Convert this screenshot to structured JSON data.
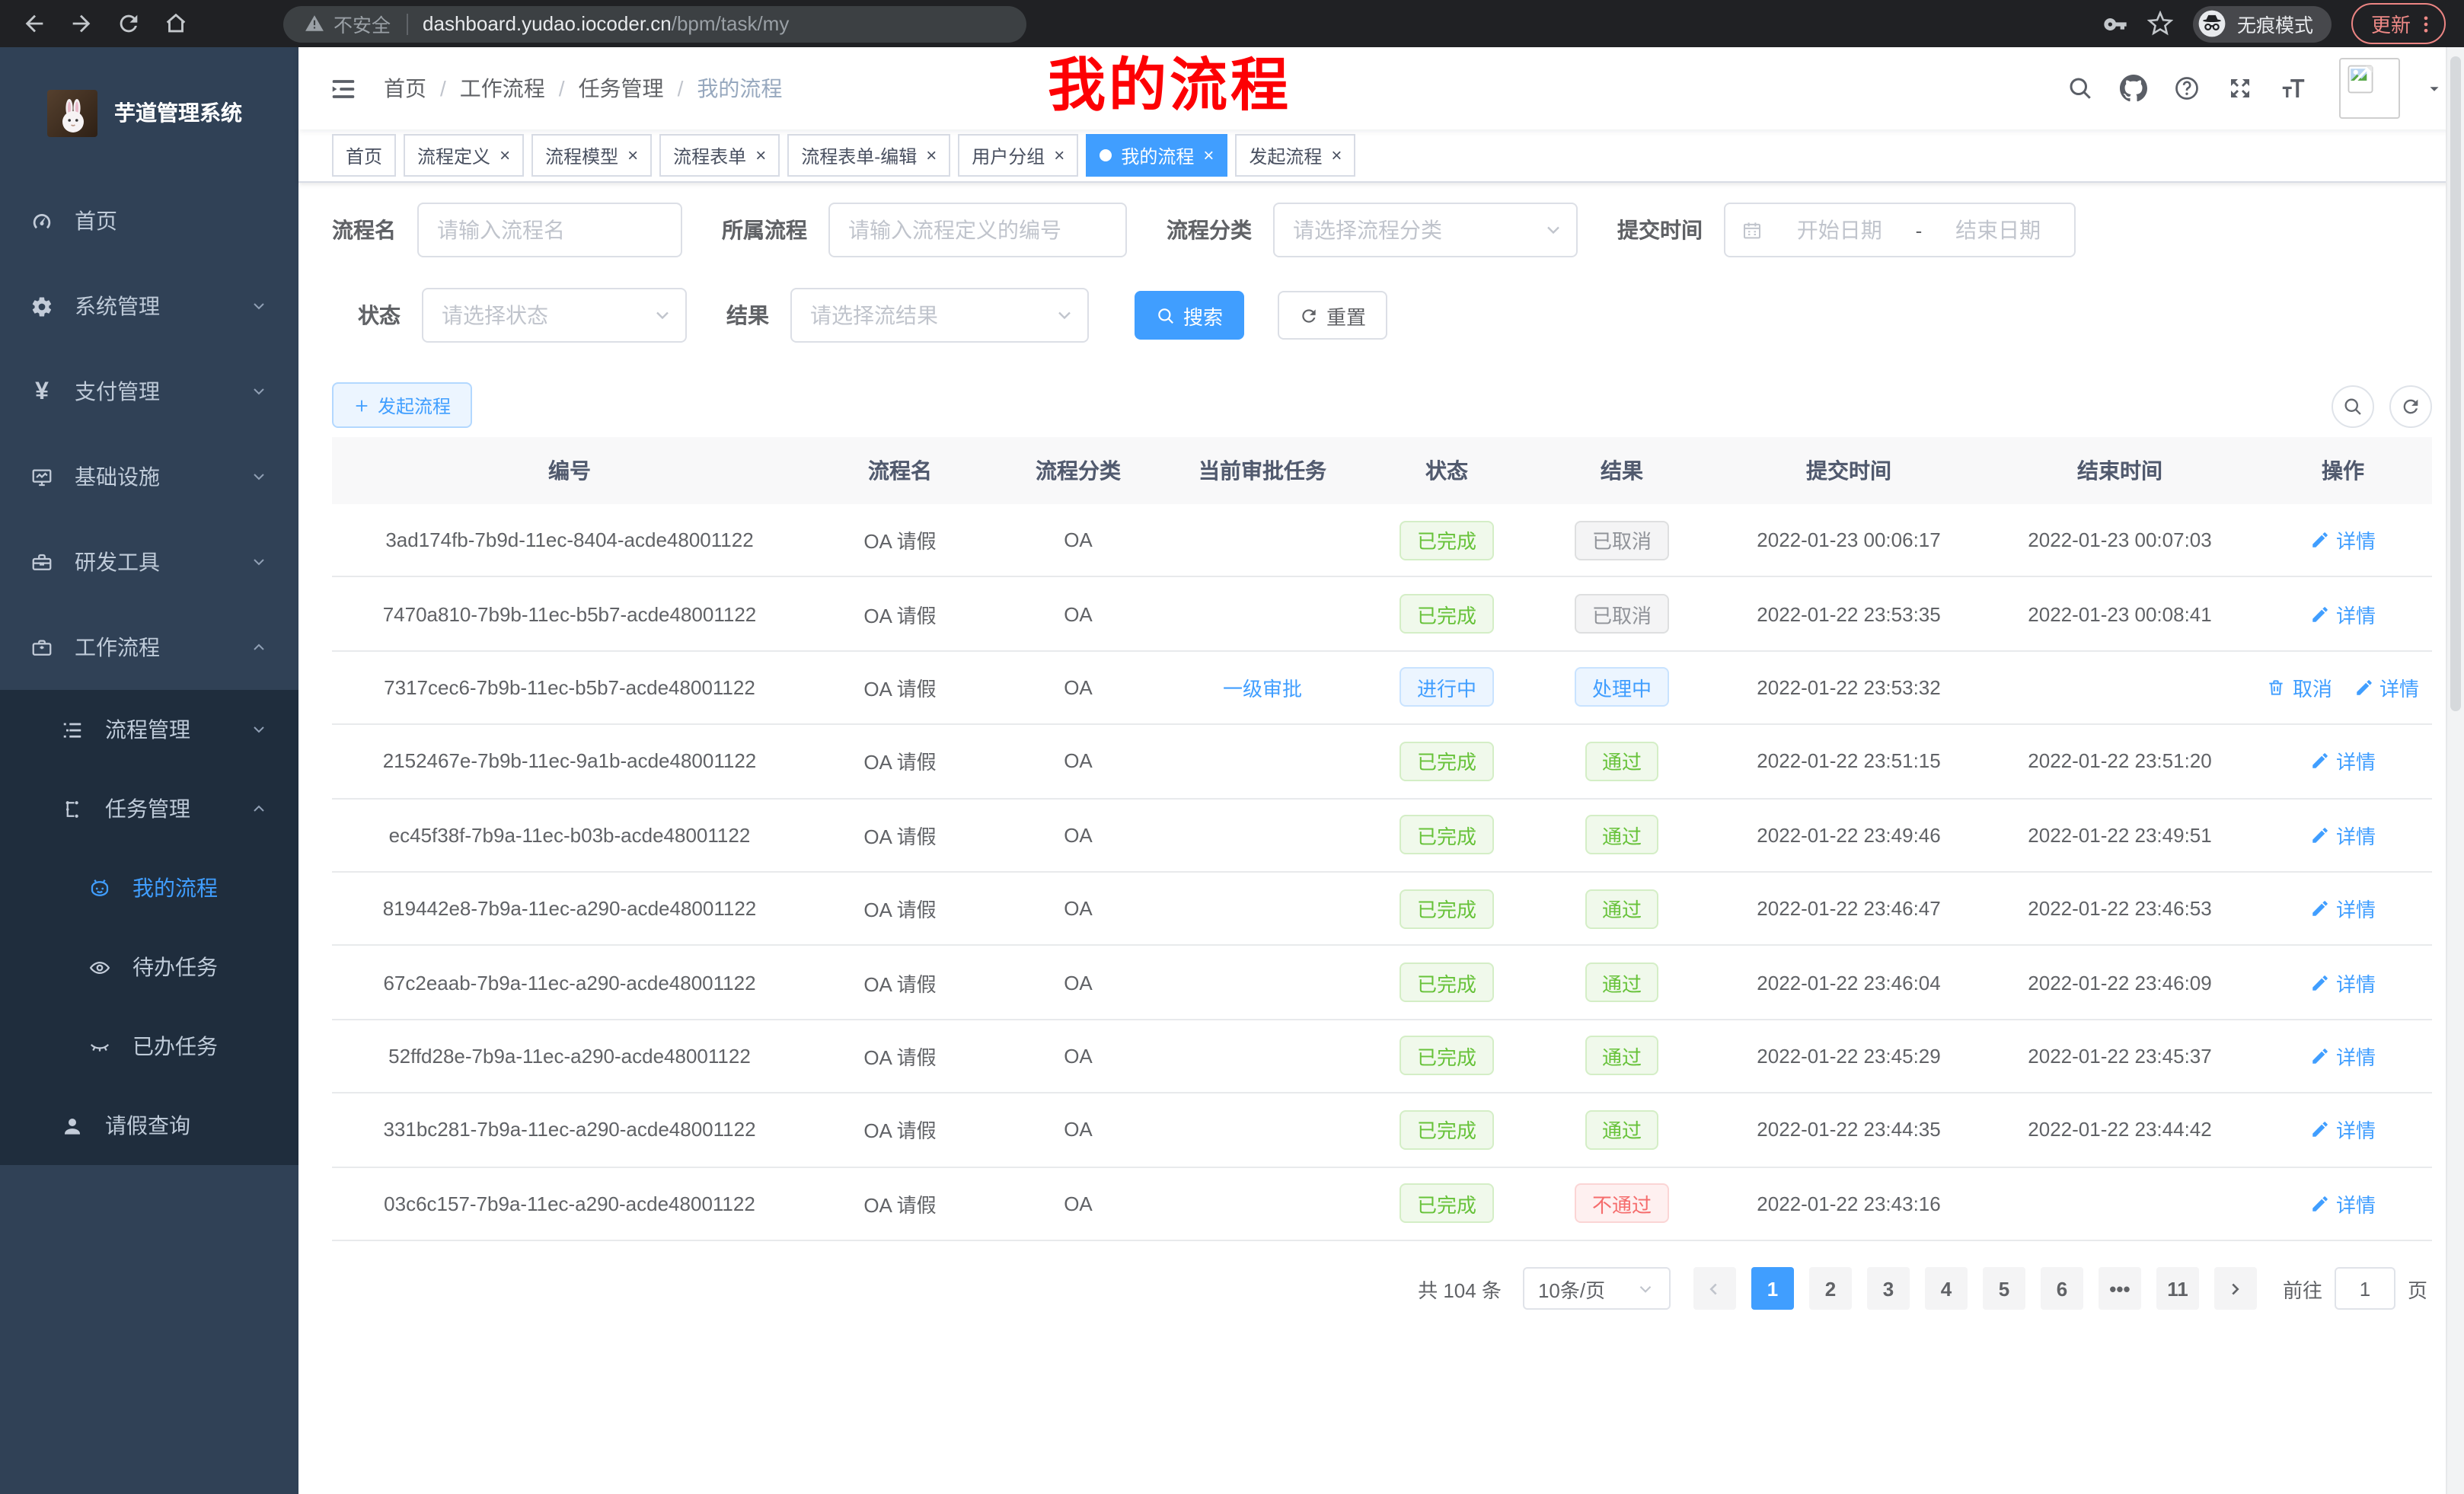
{
  "browser": {
    "security_label": "不安全",
    "url_host": "dashboard.yudao.iocoder.cn",
    "url_path": "/bpm/task/my",
    "incognito_label": "无痕模式",
    "update_label": "更新"
  },
  "sidebar": {
    "app_title": "芋道管理系统",
    "items": [
      {
        "key": "home",
        "label": "首页",
        "icon": "dashboard",
        "level": 0
      },
      {
        "key": "system",
        "label": "系统管理",
        "icon": "gear",
        "level": 0,
        "chevron": "down"
      },
      {
        "key": "payment",
        "label": "支付管理",
        "icon": "yen",
        "level": 0,
        "chevron": "down"
      },
      {
        "key": "infrastructure",
        "label": "基础设施",
        "icon": "monitor",
        "level": 0,
        "chevron": "down"
      },
      {
        "key": "devtools",
        "label": "研发工具",
        "icon": "toolbox",
        "level": 0,
        "chevron": "down"
      },
      {
        "key": "workflow",
        "label": "工作流程",
        "icon": "briefcase",
        "level": 0,
        "chevron": "up"
      },
      {
        "key": "process-mgmt",
        "label": "流程管理",
        "icon": "tree",
        "level": 1,
        "chevron": "down"
      },
      {
        "key": "task-mgmt",
        "label": "任务管理",
        "icon": "flow",
        "level": 1,
        "chevron": "up"
      },
      {
        "key": "my-process",
        "label": "我的流程",
        "icon": "robot",
        "level": 2,
        "active": true
      },
      {
        "key": "todo-tasks",
        "label": "待办任务",
        "icon": "eye",
        "level": 2
      },
      {
        "key": "done-tasks",
        "label": "已办任务",
        "icon": "eye-closed",
        "level": 2
      },
      {
        "key": "leave-query",
        "label": "请假查询",
        "icon": "user",
        "level": 1
      }
    ]
  },
  "header": {
    "breadcrumb": [
      "首页",
      "工作流程",
      "任务管理",
      "我的流程"
    ],
    "annotation": "我的流程"
  },
  "tabs": [
    {
      "key": "home",
      "label": "首页",
      "closable": false,
      "active": false
    },
    {
      "key": "process-definition",
      "label": "流程定义",
      "closable": true,
      "active": false
    },
    {
      "key": "process-model",
      "label": "流程模型",
      "closable": true,
      "active": false
    },
    {
      "key": "process-form",
      "label": "流程表单",
      "closable": true,
      "active": false
    },
    {
      "key": "process-form-edit",
      "label": "流程表单-编辑",
      "closable": true,
      "active": false
    },
    {
      "key": "user-group",
      "label": "用户分组",
      "closable": true,
      "active": false
    },
    {
      "key": "my-process",
      "label": "我的流程",
      "closable": true,
      "active": true
    },
    {
      "key": "start-process",
      "label": "发起流程",
      "closable": true,
      "active": false
    }
  ],
  "filters": {
    "process_name": {
      "label": "流程名",
      "placeholder": "请输入流程名"
    },
    "parent_process": {
      "label": "所属流程",
      "placeholder": "请输入流程定义的编号"
    },
    "category": {
      "label": "流程分类",
      "placeholder": "请选择流程分类"
    },
    "submit_time": {
      "label": "提交时间",
      "start_placeholder": "开始日期",
      "separator": "-",
      "end_placeholder": "结束日期"
    },
    "status": {
      "label": "状态",
      "placeholder": "请选择状态"
    },
    "result": {
      "label": "结果",
      "placeholder": "请选择流结果"
    },
    "search_label": "搜索",
    "reset_label": "重置"
  },
  "toolbar": {
    "create_label": "发起流程"
  },
  "table": {
    "columns": [
      "编号",
      "流程名",
      "流程分类",
      "当前审批任务",
      "状态",
      "结果",
      "提交时间",
      "结束时间",
      "操作"
    ],
    "column_keys": [
      "id",
      "name",
      "category",
      "task",
      "status",
      "result",
      "submit-time",
      "end-time",
      "actions"
    ],
    "rows": [
      {
        "id": "3ad174fb-7b9d-11ec-8404-acde48001122",
        "name": "OA 请假",
        "category": "OA",
        "task": "",
        "status": {
          "label": "已完成",
          "type": "success"
        },
        "result": {
          "label": "已取消",
          "type": "info"
        },
        "submit_time": "2022-01-23 00:06:17",
        "end_time": "2022-01-23 00:07:03",
        "actions": [
          {
            "label": "详情",
            "icon": "edit-icon"
          }
        ]
      },
      {
        "id": "7470a810-7b9b-11ec-b5b7-acde48001122",
        "name": "OA 请假",
        "category": "OA",
        "task": "",
        "status": {
          "label": "已完成",
          "type": "success"
        },
        "result": {
          "label": "已取消",
          "type": "info"
        },
        "submit_time": "2022-01-22 23:53:35",
        "end_time": "2022-01-23 00:08:41",
        "actions": [
          {
            "label": "详情",
            "icon": "edit-icon"
          }
        ]
      },
      {
        "id": "7317cec6-7b9b-11ec-b5b7-acde48001122",
        "name": "OA 请假",
        "category": "OA",
        "task": "一级审批",
        "status": {
          "label": "进行中",
          "type": "primary"
        },
        "result": {
          "label": "处理中",
          "type": "primary"
        },
        "submit_time": "2022-01-22 23:53:32",
        "end_time": "",
        "actions": [
          {
            "label": "取消",
            "icon": "delete-icon"
          },
          {
            "label": "详情",
            "icon": "edit-icon"
          }
        ]
      },
      {
        "id": "2152467e-7b9b-11ec-9a1b-acde48001122",
        "name": "OA 请假",
        "category": "OA",
        "task": "",
        "status": {
          "label": "已完成",
          "type": "success"
        },
        "result": {
          "label": "通过",
          "type": "success"
        },
        "submit_time": "2022-01-22 23:51:15",
        "end_time": "2022-01-22 23:51:20",
        "actions": [
          {
            "label": "详情",
            "icon": "edit-icon"
          }
        ]
      },
      {
        "id": "ec45f38f-7b9a-11ec-b03b-acde48001122",
        "name": "OA 请假",
        "category": "OA",
        "task": "",
        "status": {
          "label": "已完成",
          "type": "success"
        },
        "result": {
          "label": "通过",
          "type": "success"
        },
        "submit_time": "2022-01-22 23:49:46",
        "end_time": "2022-01-22 23:49:51",
        "actions": [
          {
            "label": "详情",
            "icon": "edit-icon"
          }
        ]
      },
      {
        "id": "819442e8-7b9a-11ec-a290-acde48001122",
        "name": "OA 请假",
        "category": "OA",
        "task": "",
        "status": {
          "label": "已完成",
          "type": "success"
        },
        "result": {
          "label": "通过",
          "type": "success"
        },
        "submit_time": "2022-01-22 23:46:47",
        "end_time": "2022-01-22 23:46:53",
        "actions": [
          {
            "label": "详情",
            "icon": "edit-icon"
          }
        ]
      },
      {
        "id": "67c2eaab-7b9a-11ec-a290-acde48001122",
        "name": "OA 请假",
        "category": "OA",
        "task": "",
        "status": {
          "label": "已完成",
          "type": "success"
        },
        "result": {
          "label": "通过",
          "type": "success"
        },
        "submit_time": "2022-01-22 23:46:04",
        "end_time": "2022-01-22 23:46:09",
        "actions": [
          {
            "label": "详情",
            "icon": "edit-icon"
          }
        ]
      },
      {
        "id": "52ffd28e-7b9a-11ec-a290-acde48001122",
        "name": "OA 请假",
        "category": "OA",
        "task": "",
        "status": {
          "label": "已完成",
          "type": "success"
        },
        "result": {
          "label": "通过",
          "type": "success"
        },
        "submit_time": "2022-01-22 23:45:29",
        "end_time": "2022-01-22 23:45:37",
        "actions": [
          {
            "label": "详情",
            "icon": "edit-icon"
          }
        ]
      },
      {
        "id": "331bc281-7b9a-11ec-a290-acde48001122",
        "name": "OA 请假",
        "category": "OA",
        "task": "",
        "status": {
          "label": "已完成",
          "type": "success"
        },
        "result": {
          "label": "通过",
          "type": "success"
        },
        "submit_time": "2022-01-22 23:44:35",
        "end_time": "2022-01-22 23:44:42",
        "actions": [
          {
            "label": "详情",
            "icon": "edit-icon"
          }
        ]
      },
      {
        "id": "03c6c157-7b9a-11ec-a290-acde48001122",
        "name": "OA 请假",
        "category": "OA",
        "task": "",
        "status": {
          "label": "已完成",
          "type": "success"
        },
        "result": {
          "label": "不通过",
          "type": "danger"
        },
        "submit_time": "2022-01-22 23:43:16",
        "end_time": "",
        "actions": [
          {
            "label": "详情",
            "icon": "edit-icon"
          }
        ]
      }
    ]
  },
  "pagination": {
    "total_label": "共 104 条",
    "page_size_label": "10条/页",
    "pages": [
      "1",
      "2",
      "3",
      "4",
      "5",
      "6",
      "•••",
      "11"
    ],
    "active_page": "1",
    "goto_label": "前往",
    "goto_value": "1",
    "goto_suffix": "页"
  },
  "colors": {
    "primary": "#409eff",
    "success_text": "#67c23a",
    "danger_text": "#f56c6c",
    "info_text": "#909399",
    "sidebar_bg": "#304156",
    "submenu_bg": "#1f2d3d",
    "tab_active_bg": "#409eff",
    "annotation_red": "#fd0004",
    "update_button": "#ee8986"
  },
  "icons": {
    "navbar": [
      "search-icon",
      "github-icon",
      "question-icon",
      "fullscreen-icon",
      "font-size-icon",
      "avatar",
      "caret-down-icon"
    ],
    "browser": [
      "back-icon",
      "forward-icon",
      "reload-icon",
      "home-icon",
      "warning-icon",
      "key-icon",
      "star-icon",
      "incognito-icon",
      "kebab-menu-icon"
    ]
  }
}
